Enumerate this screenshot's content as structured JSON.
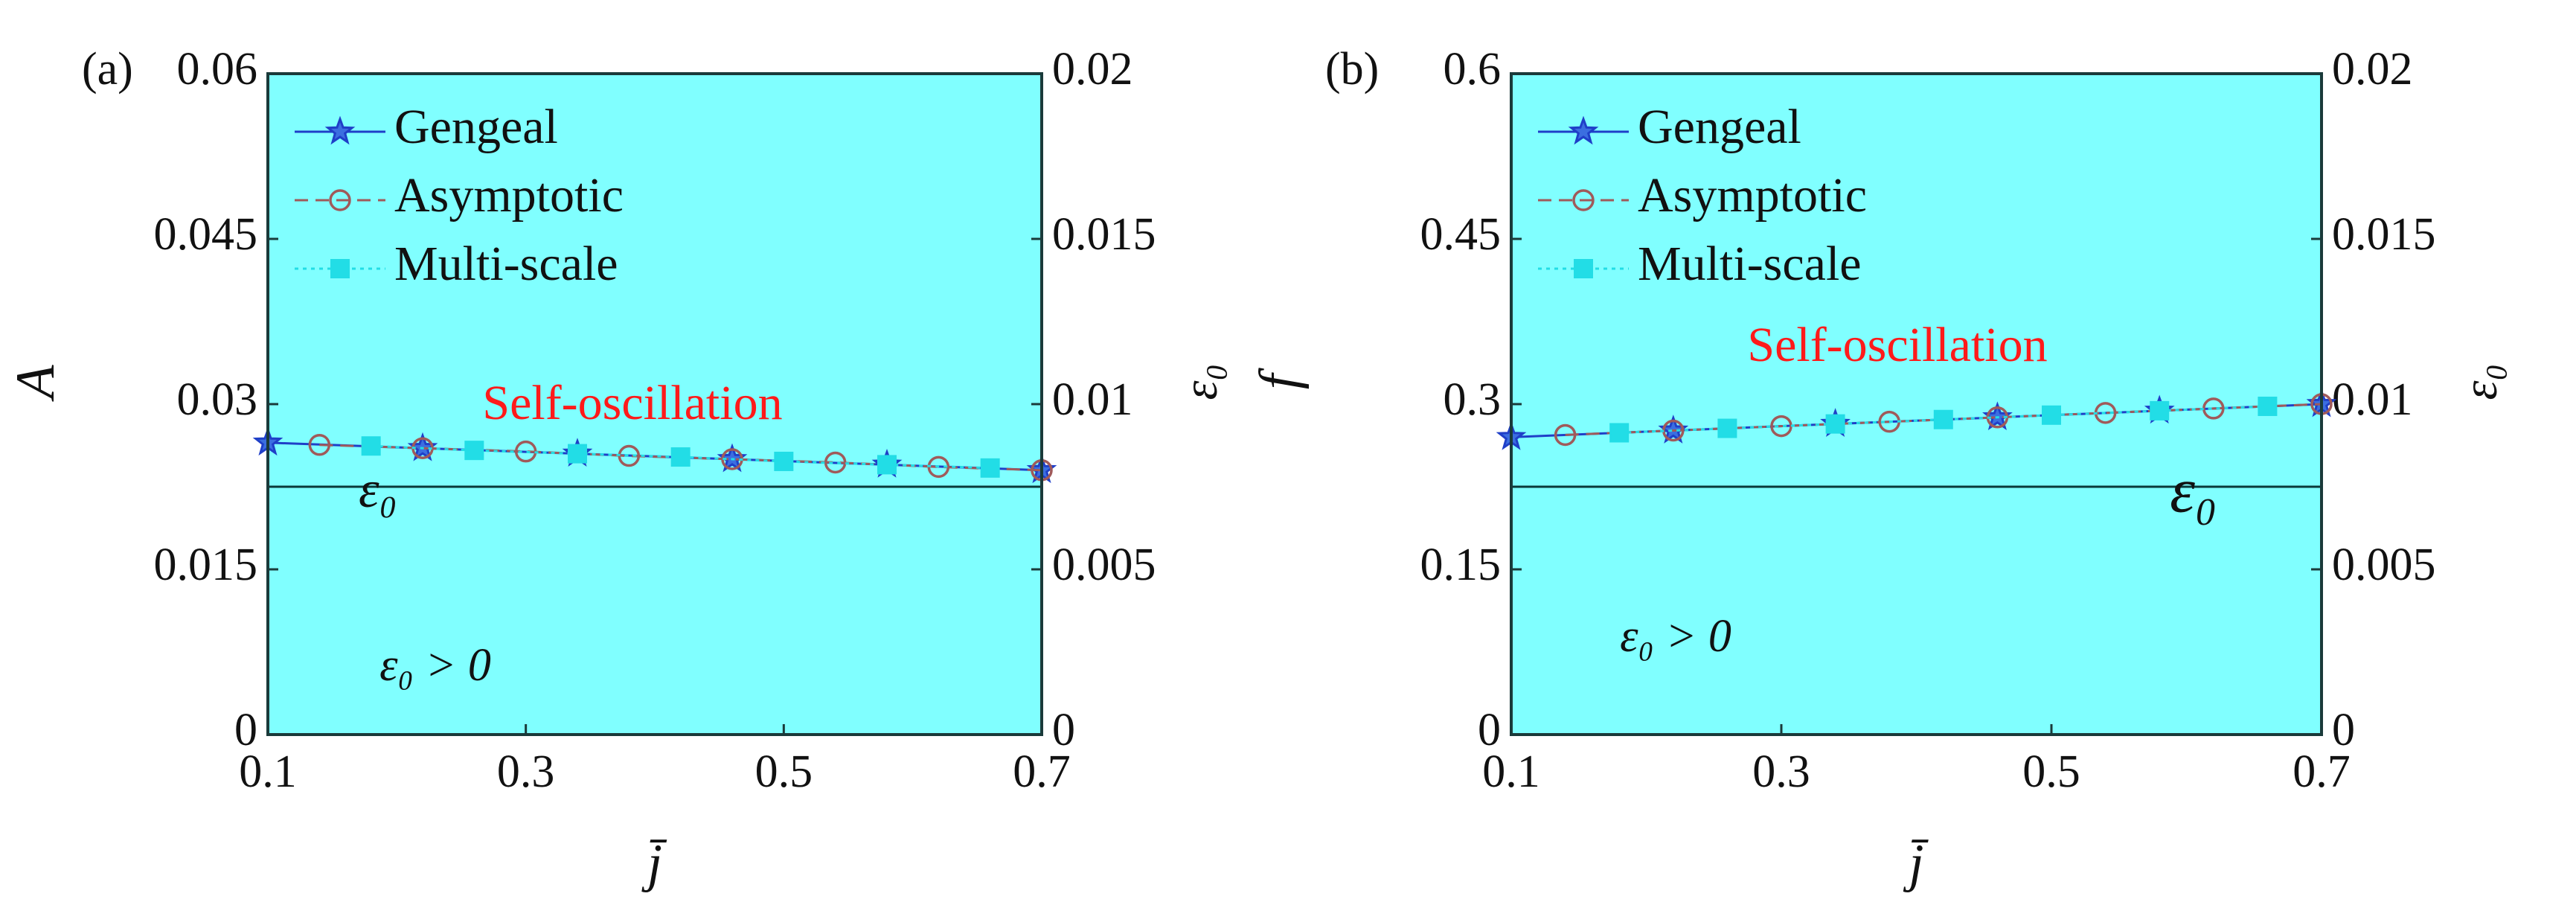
{
  "chart_data": [
    {
      "type": "line",
      "panel_label": "(a)",
      "xlabel": "j̄",
      "ylabel": "A",
      "y2label": "ε₀",
      "xlim": [
        0.1,
        0.7
      ],
      "xticks": [
        0.1,
        0.3,
        0.5,
        0.7
      ],
      "ylim": [
        0,
        0.06
      ],
      "yticks": [
        0,
        0.015,
        0.03,
        0.045,
        0.06
      ],
      "y2lim": [
        0,
        0.02
      ],
      "y2ticks": [
        0,
        0.005,
        0.01,
        0.015,
        0.02
      ],
      "background": "#80ffff",
      "grid": false,
      "legend": "upper left",
      "series": [
        {
          "name": "Gengeal",
          "color": "#1f3fc8",
          "marker": "star",
          "linestyle": "solid",
          "x": [
            0.1,
            0.22,
            0.34,
            0.46,
            0.58,
            0.7
          ],
          "values": [
            0.0265,
            0.026,
            0.0255,
            0.025,
            0.0245,
            0.024
          ]
        },
        {
          "name": "Asymptotic",
          "color": "#a05a5a",
          "marker": "circle",
          "linestyle": "dashed",
          "x": [
            0.14,
            0.22,
            0.3,
            0.38,
            0.46,
            0.54,
            0.62,
            0.7
          ],
          "values": [
            0.0263,
            0.026,
            0.0257,
            0.0253,
            0.025,
            0.0247,
            0.0243,
            0.024
          ]
        },
        {
          "name": "Multi-scale",
          "color": "#22dde6",
          "marker": "square",
          "linestyle": "dotted",
          "x": [
            0.18,
            0.26,
            0.34,
            0.42,
            0.5,
            0.58,
            0.66
          ],
          "values": [
            0.0262,
            0.0258,
            0.0255,
            0.0252,
            0.0248,
            0.0245,
            0.0242
          ]
        }
      ],
      "reference_line": {
        "label": "ε₀",
        "value": 0.0075,
        "axis": "y2"
      },
      "annotations": [
        "Self-oscillation",
        "ε₀ > 0"
      ]
    },
    {
      "type": "line",
      "panel_label": "(b)",
      "xlabel": "j̄",
      "ylabel": "f",
      "y2label": "ε₀",
      "xlim": [
        0.1,
        0.7
      ],
      "xticks": [
        0.1,
        0.3,
        0.5,
        0.7
      ],
      "ylim": [
        0,
        0.6
      ],
      "yticks": [
        0,
        0.15,
        0.3,
        0.45,
        0.6
      ],
      "y2lim": [
        0,
        0.02
      ],
      "y2ticks": [
        0,
        0.005,
        0.01,
        0.015,
        0.02
      ],
      "background": "#80ffff",
      "grid": false,
      "legend": "upper left",
      "series": [
        {
          "name": "Gengeal",
          "color": "#1f3fc8",
          "marker": "star",
          "linestyle": "solid",
          "x": [
            0.1,
            0.22,
            0.34,
            0.46,
            0.58,
            0.7
          ],
          "values": [
            0.27,
            0.276,
            0.282,
            0.288,
            0.294,
            0.3
          ]
        },
        {
          "name": "Asymptotic",
          "color": "#a05a5a",
          "marker": "circle",
          "linestyle": "dashed",
          "x": [
            0.14,
            0.22,
            0.3,
            0.38,
            0.46,
            0.54,
            0.62,
            0.7
          ],
          "values": [
            0.272,
            0.276,
            0.28,
            0.284,
            0.288,
            0.292,
            0.296,
            0.3
          ]
        },
        {
          "name": "Multi-scale",
          "color": "#22dde6",
          "marker": "square",
          "linestyle": "dotted",
          "x": [
            0.18,
            0.26,
            0.34,
            0.42,
            0.5,
            0.58,
            0.66
          ],
          "values": [
            0.274,
            0.278,
            0.282,
            0.286,
            0.29,
            0.294,
            0.298
          ]
        }
      ],
      "reference_line": {
        "label": "ε₀",
        "value": 0.0075,
        "axis": "y2"
      },
      "annotations": [
        "Self-oscillation",
        "ε₀ > 0"
      ]
    }
  ]
}
